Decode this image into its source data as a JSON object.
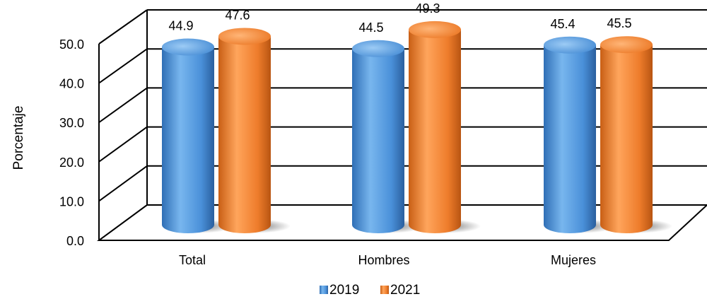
{
  "chart_data": {
    "type": "bar",
    "categories": [
      "Total",
      "Hombres",
      "Mujeres"
    ],
    "series": [
      {
        "name": "2019",
        "values": [
          44.9,
          44.5,
          45.4
        ],
        "color": "#4a90d9"
      },
      {
        "name": "2021",
        "values": [
          47.6,
          49.3,
          45.5
        ],
        "color": "#ee7c2b"
      }
    ],
    "ylabel": "Porcentaje",
    "ylim": [
      0,
      50
    ],
    "yticks": [
      "0.0",
      "10.0",
      "20.0",
      "30.0",
      "40.0",
      "50.0"
    ],
    "grid": true,
    "legend_position": "bottom",
    "style": "3d-cylinder"
  }
}
